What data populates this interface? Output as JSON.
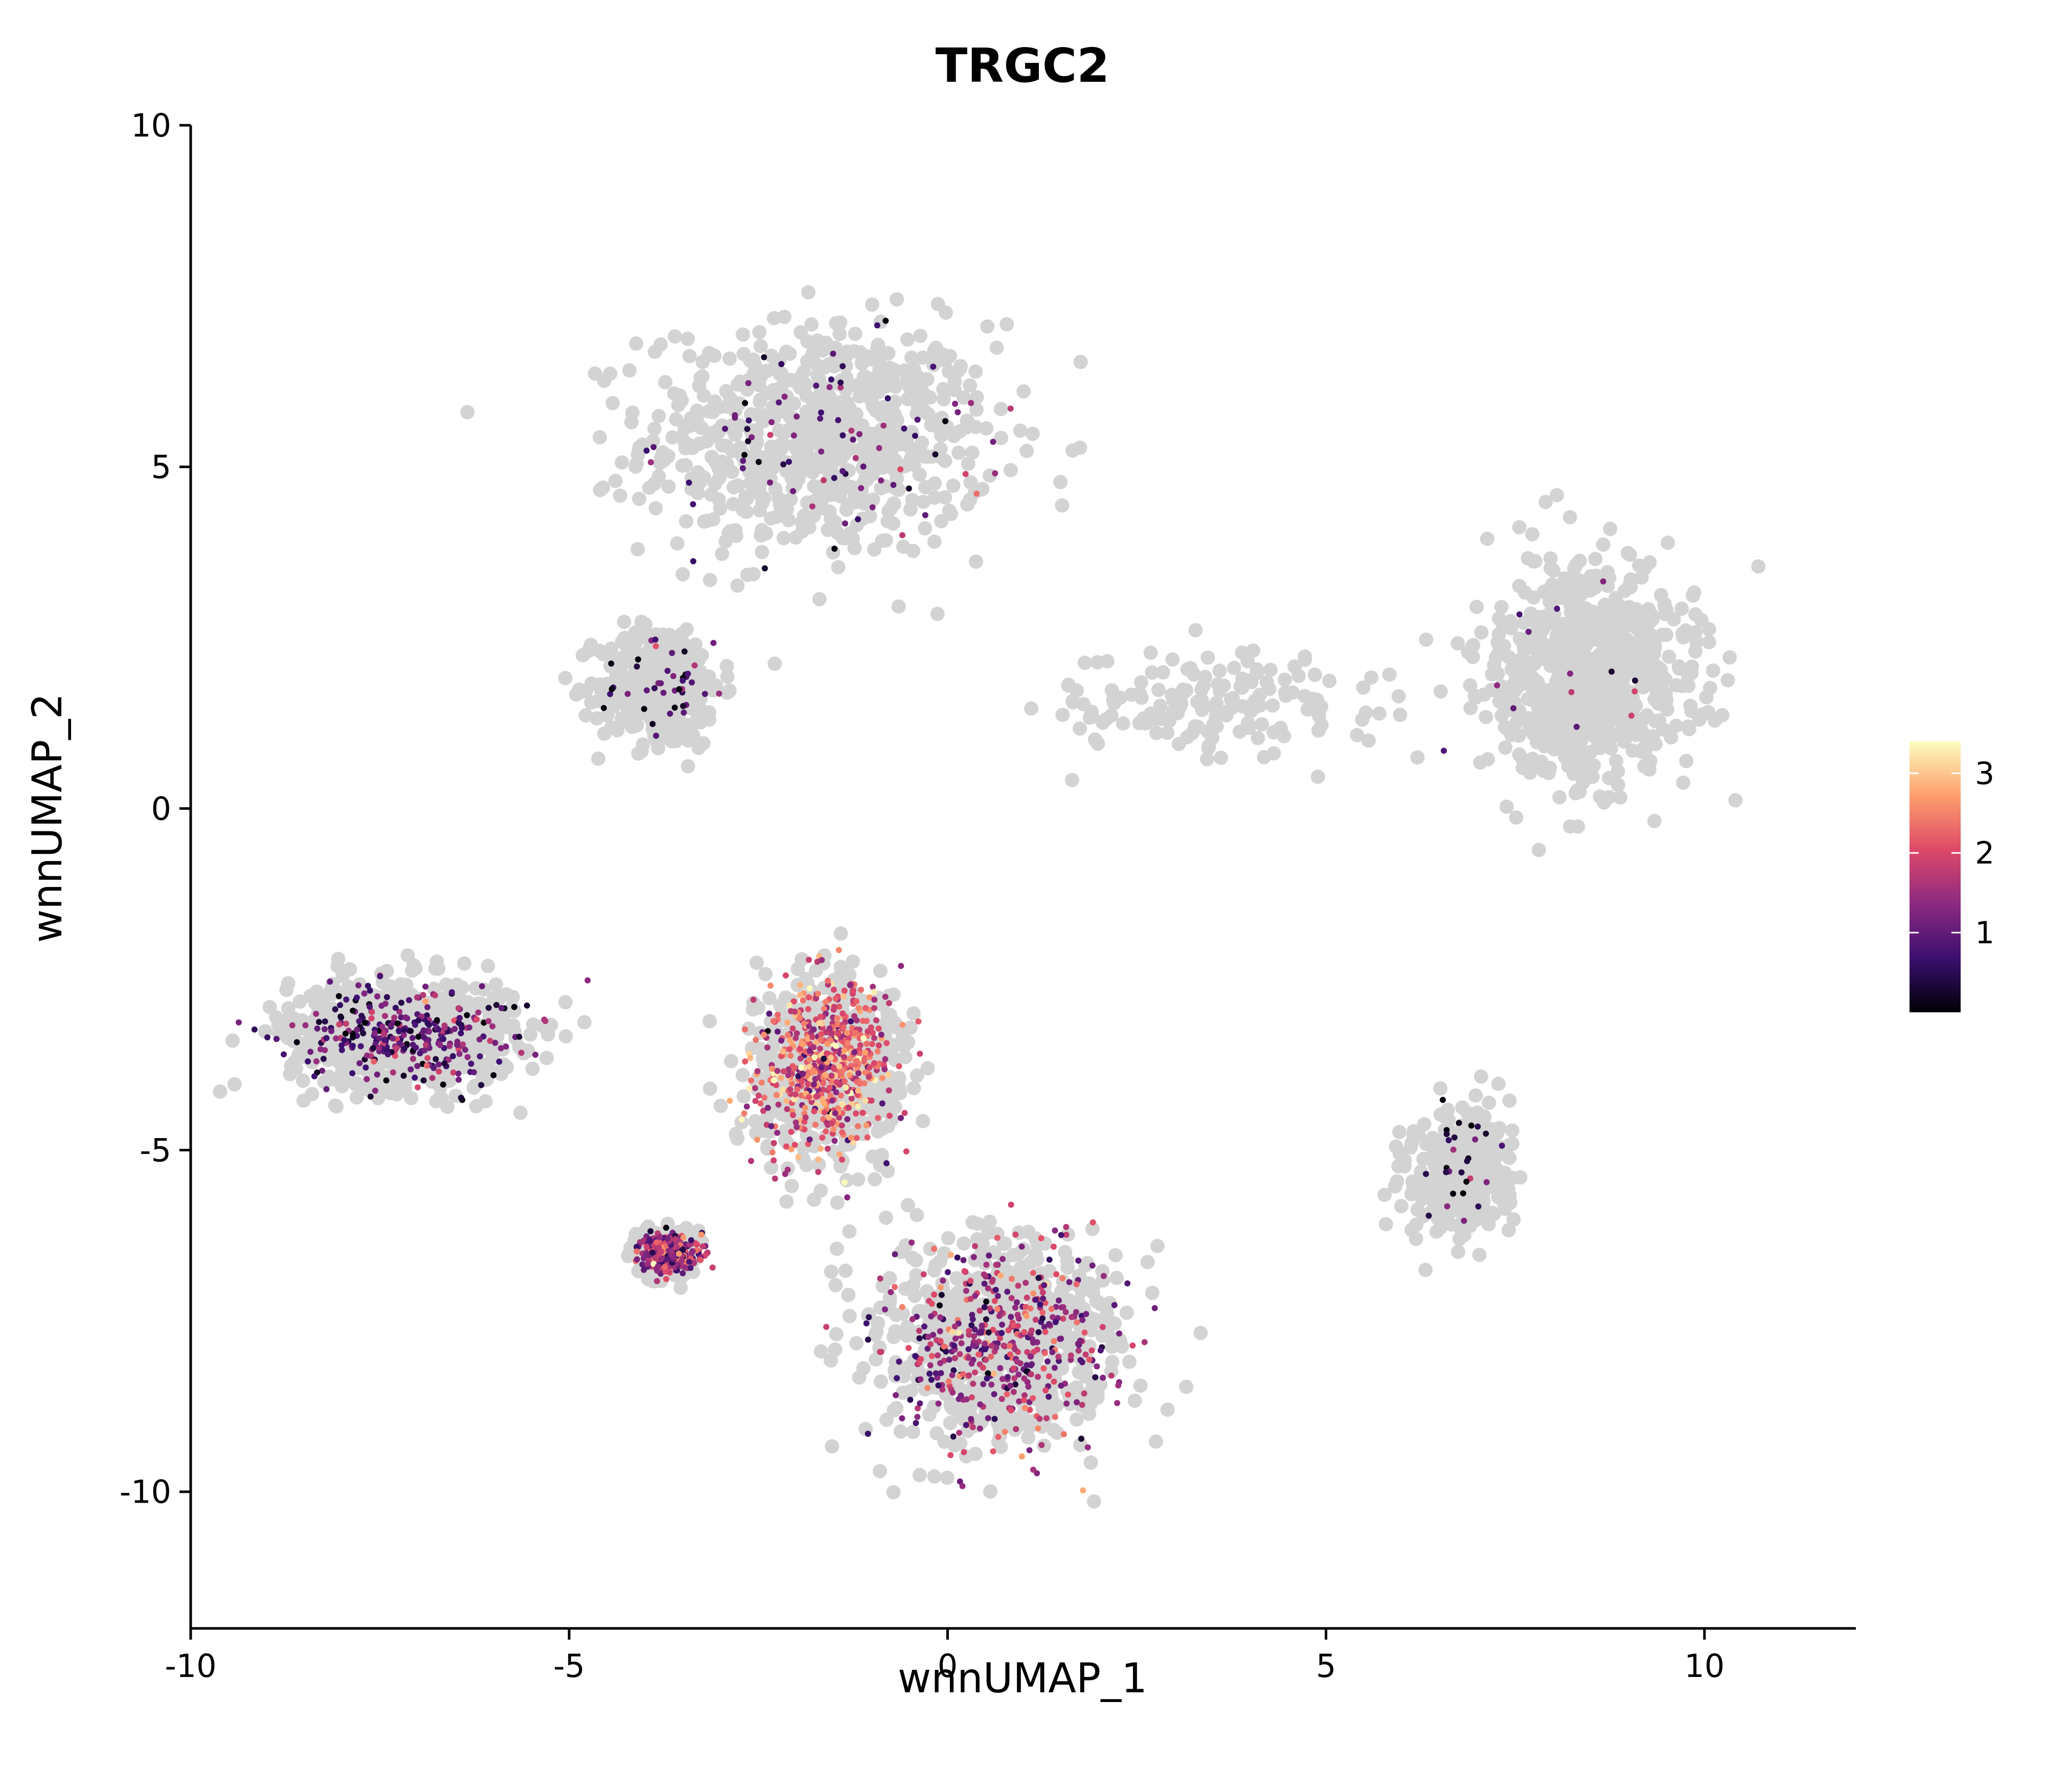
{
  "chart_data": {
    "type": "scatter",
    "title": "TRGC2",
    "xlabel": "wnnUMAP_1",
    "ylabel": "wnnUMAP_2",
    "xlim": [
      -10,
      12
    ],
    "ylim": [
      -12,
      10
    ],
    "x_ticks": [
      -10,
      -5,
      0,
      5,
      10
    ],
    "y_ticks": [
      -10,
      -5,
      0,
      5,
      10
    ],
    "x_tick_labels": [
      "-10",
      "-5",
      "0",
      "5",
      "10"
    ],
    "y_tick_labels": [
      "-10",
      "-5",
      "0",
      "5",
      "10"
    ],
    "grid": false,
    "background_color": "#d3d3d3",
    "colormap": "magma",
    "colorbar": {
      "placement": "right",
      "min": 0,
      "max": 3.4,
      "ticks": [
        1,
        2,
        3
      ],
      "tick_labels": [
        "1",
        "2",
        "3"
      ],
      "colors": [
        "#000004",
        "#3b0f70",
        "#8c2981",
        "#de4968",
        "#fe9f6d",
        "#fcfdbf"
      ]
    },
    "clusters": [
      {
        "region": "top",
        "center": [
          -1.7,
          5.4
        ],
        "spread": [
          2.3,
          1.7
        ],
        "density": "high",
        "expression": "sparse-low"
      },
      {
        "region": "upper-left-arm",
        "center": [
          -3.8,
          1.8
        ],
        "spread": [
          0.8,
          0.9
        ],
        "density": "medium",
        "expression": "sparse-low"
      },
      {
        "region": "left-lobe",
        "center": [
          -7.2,
          -3.3
        ],
        "spread": [
          1.5,
          0.8
        ],
        "density": "high",
        "expression": "low"
      },
      {
        "region": "central-stalk",
        "center": [
          -1.6,
          -3.8
        ],
        "spread": [
          0.9,
          1.3
        ],
        "density": "high",
        "expression": "high"
      },
      {
        "region": "bottom-lobe",
        "center": [
          0.7,
          -7.8
        ],
        "spread": [
          1.6,
          1.5
        ],
        "density": "high",
        "expression": "medium"
      },
      {
        "region": "small-blob",
        "center": [
          -3.7,
          -6.5
        ],
        "spread": [
          0.35,
          0.3
        ],
        "density": "high",
        "expression": "medium"
      },
      {
        "region": "right-lobe",
        "center": [
          8.5,
          2.0
        ],
        "spread": [
          1.4,
          1.6
        ],
        "density": "high",
        "expression": "rare"
      },
      {
        "region": "lower-right-lobe",
        "center": [
          6.8,
          -5.3
        ],
        "spread": [
          0.7,
          0.9
        ],
        "density": "medium",
        "expression": "rare-low"
      },
      {
        "region": "bridge",
        "center": [
          3.5,
          1.5
        ],
        "spread": [
          2.0,
          0.8
        ],
        "density": "sparse",
        "expression": "none"
      }
    ]
  }
}
